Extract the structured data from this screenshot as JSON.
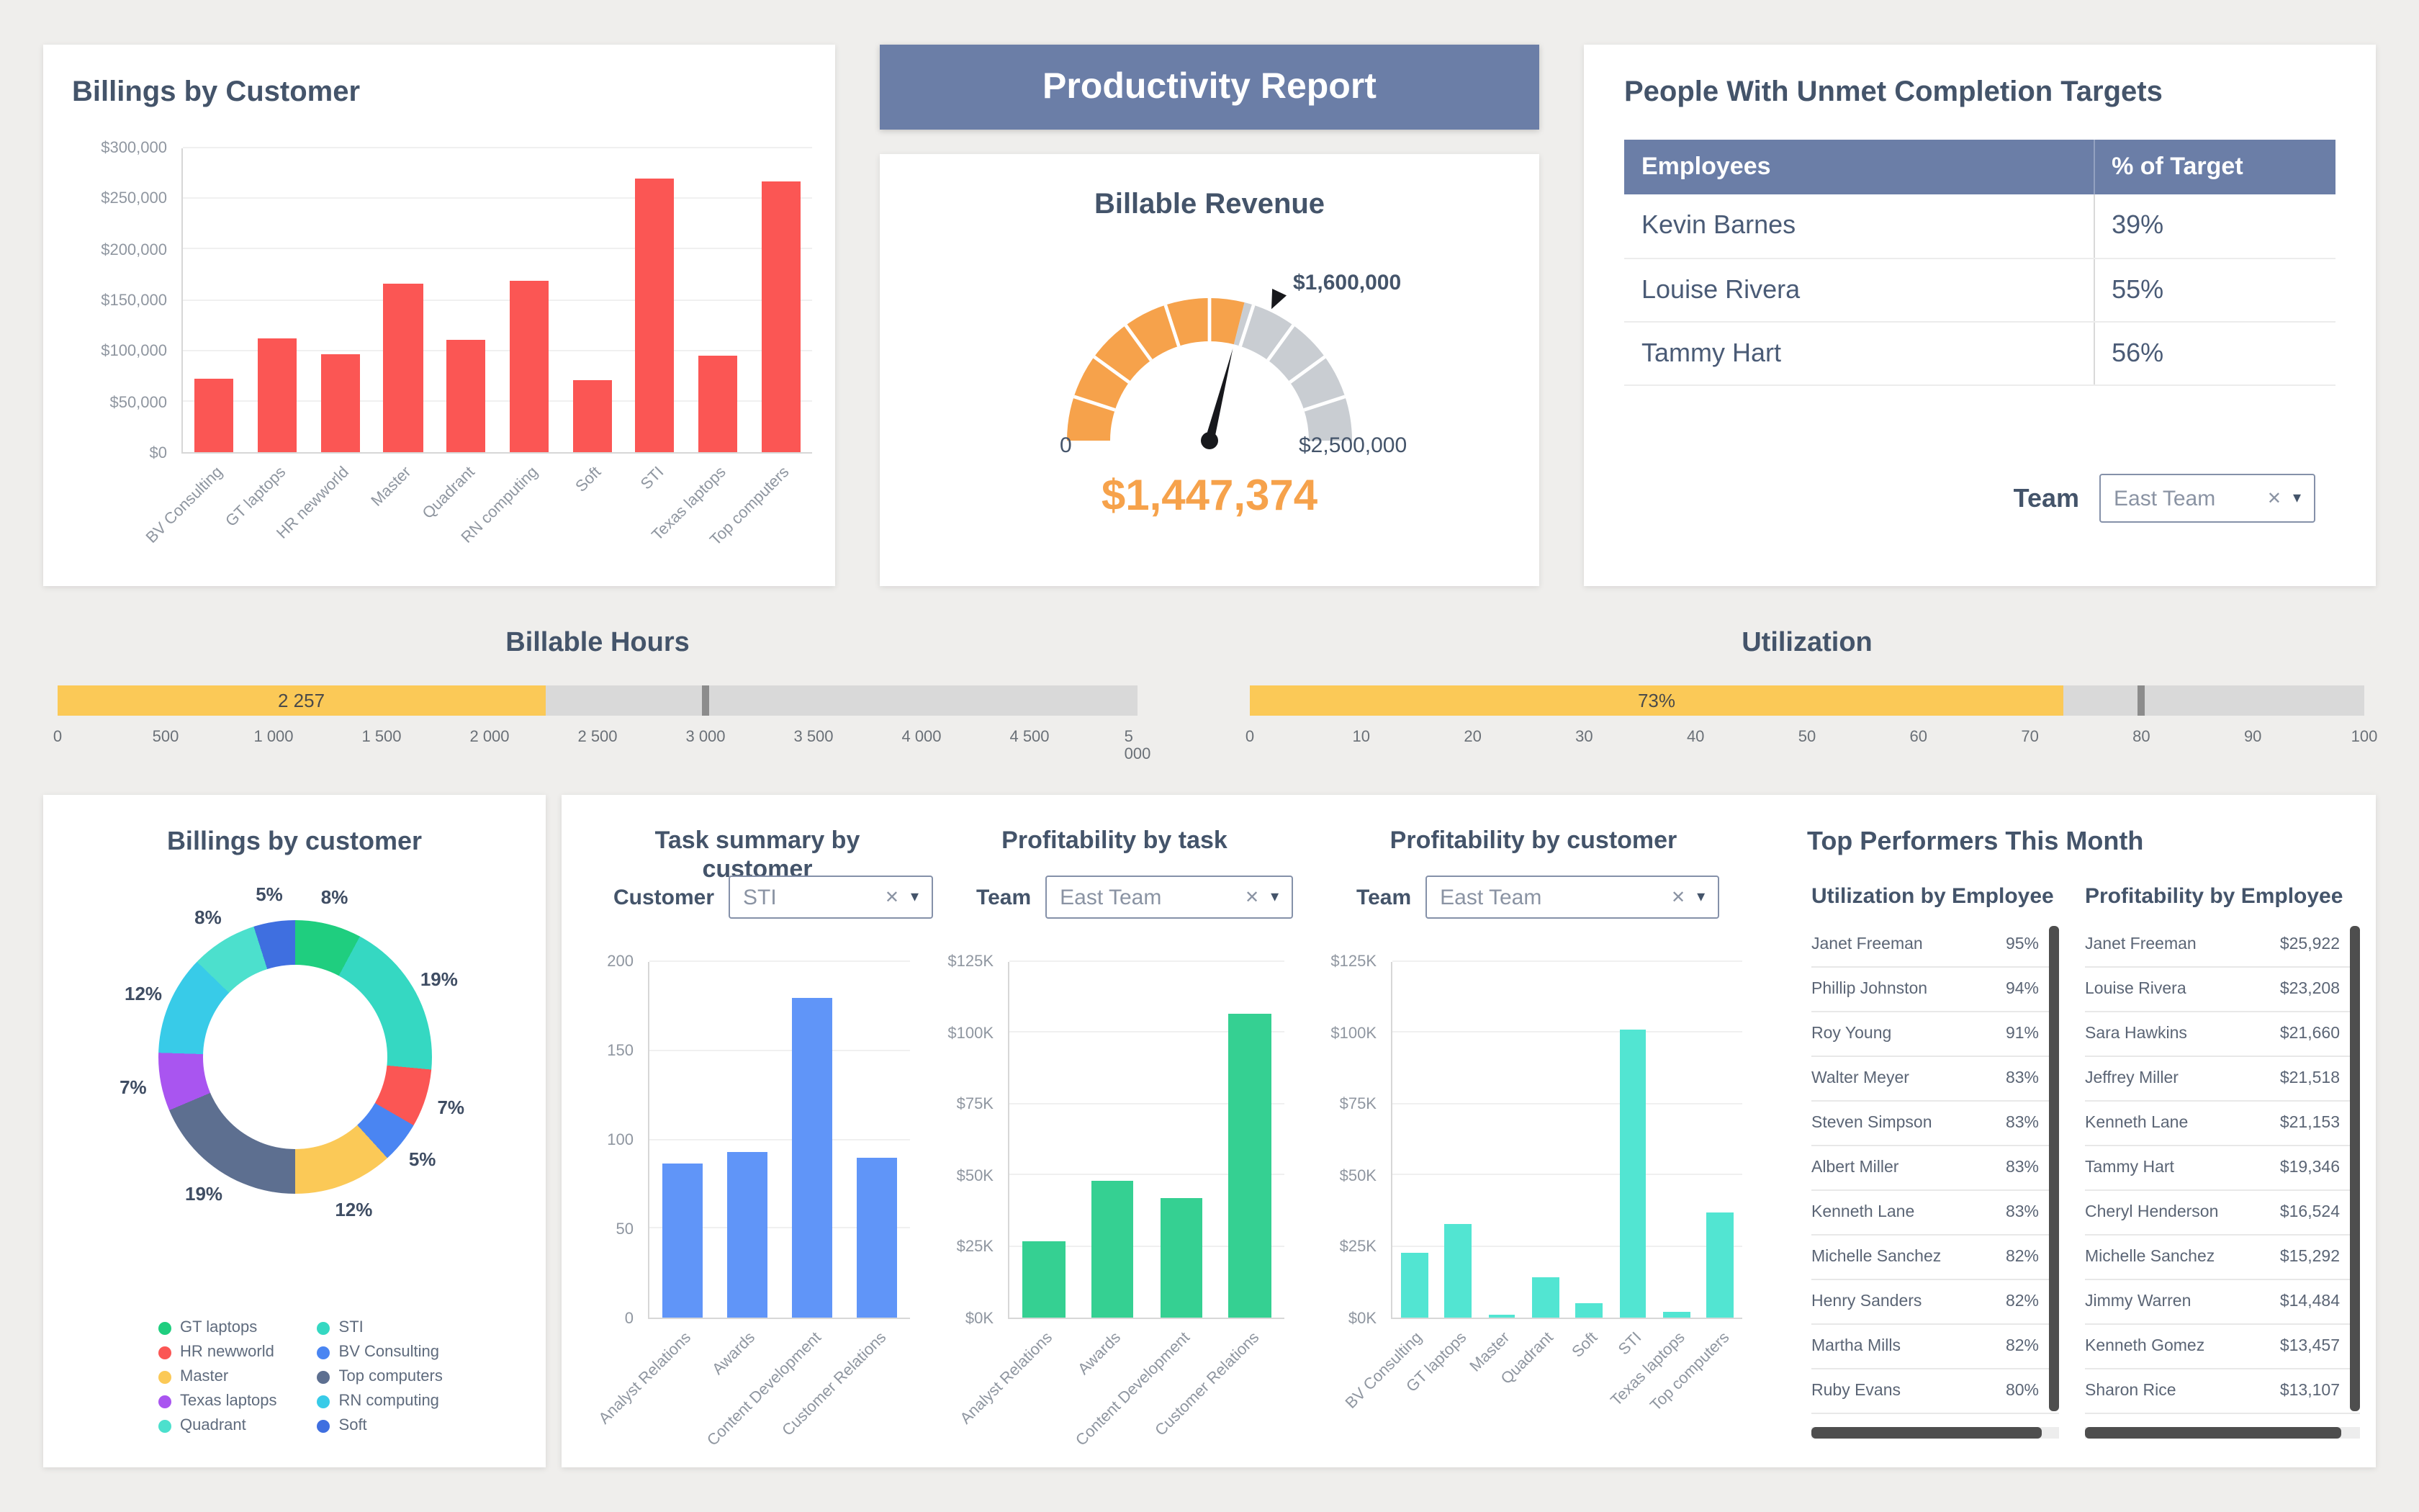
{
  "header": {
    "title": "Productivity Report"
  },
  "icons": {
    "clear": "✕",
    "caret": "▾"
  },
  "colors": {
    "banner_bg": "#6b7ea7",
    "accent_orange": "#f6a24b",
    "accent_yellow": "#fbc957",
    "bar_red": "#fb5654",
    "bar_blue": "#6095f8",
    "bar_green": "#35d092",
    "bar_cyan": "#52e5d2",
    "title_text": "#44546a"
  },
  "panels": {
    "billings_bar": {
      "title": "Billings by Customer"
    },
    "gauge": {
      "title": "Billable Revenue"
    },
    "targets_table": {
      "title": "People With Unmet Completion Targets",
      "columns": [
        "Employees",
        "% of Target"
      ],
      "rows": [
        {
          "employee": "Kevin Barnes",
          "pct": "39%"
        },
        {
          "employee": "Louise Rivera",
          "pct": "55%"
        },
        {
          "employee": "Tammy Hart",
          "pct": "56%"
        }
      ],
      "team_filter": {
        "label": "Team",
        "value": "East Team"
      }
    },
    "billable_hours": {
      "title": "Billable Hours"
    },
    "utilization": {
      "title": "Utilization"
    },
    "donut": {
      "title": "Billings by customer"
    },
    "task_summary": {
      "title": "Task summary by customer",
      "filter_label": "Customer",
      "filter_value": "STI"
    },
    "profit_task": {
      "title": "Profitability by task",
      "filter_label": "Team",
      "filter_value": "East Team"
    },
    "profit_customer": {
      "title": "Profitability by customer",
      "filter_label": "Team",
      "filter_value": "East Team"
    },
    "top_performers": {
      "title": "Top Performers This Month",
      "utilization_list": {
        "title": "Utilization by Employee",
        "rows": [
          {
            "name": "Janet Freeman",
            "value": "95%"
          },
          {
            "name": "Phillip Johnston",
            "value": "94%"
          },
          {
            "name": "Roy Young",
            "value": "91%"
          },
          {
            "name": "Walter Meyer",
            "value": "83%"
          },
          {
            "name": "Steven Simpson",
            "value": "83%"
          },
          {
            "name": "Albert Miller",
            "value": "83%"
          },
          {
            "name": "Kenneth Lane",
            "value": "83%"
          },
          {
            "name": "Michelle Sanchez",
            "value": "82%"
          },
          {
            "name": "Henry Sanders",
            "value": "82%"
          },
          {
            "name": "Martha Mills",
            "value": "82%"
          },
          {
            "name": "Ruby Evans",
            "value": "80%"
          }
        ]
      },
      "profitability_list": {
        "title": "Profitability by Employee",
        "rows": [
          {
            "name": "Janet Freeman",
            "value": "$25,922"
          },
          {
            "name": "Louise Rivera",
            "value": "$23,208"
          },
          {
            "name": "Sara Hawkins",
            "value": "$21,660"
          },
          {
            "name": "Jeffrey Miller",
            "value": "$21,518"
          },
          {
            "name": "Kenneth Lane",
            "value": "$21,153"
          },
          {
            "name": "Tammy Hart",
            "value": "$19,346"
          },
          {
            "name": "Cheryl Henderson",
            "value": "$16,524"
          },
          {
            "name": "Michelle Sanchez",
            "value": "$15,292"
          },
          {
            "name": "Jimmy Warren",
            "value": "$14,484"
          },
          {
            "name": "Kenneth Gomez",
            "value": "$13,457"
          },
          {
            "name": "Sharon Rice",
            "value": "$13,107"
          }
        ]
      }
    }
  },
  "chart_data": [
    {
      "id": "billings_by_customer",
      "type": "bar",
      "title": "Billings by Customer",
      "categories": [
        "BV Consulting",
        "GT laptops",
        "HR newworld",
        "Master",
        "Quadrant",
        "RN computing",
        "Soft",
        "STI",
        "Texas laptops",
        "Top computers"
      ],
      "values": [
        72000,
        113000,
        97000,
        166000,
        111000,
        169000,
        71000,
        270000,
        95000,
        267000
      ],
      "ylim": [
        0,
        300000
      ],
      "ytick_labels": [
        "$0",
        "$50,000",
        "$100,000",
        "$150,000",
        "$200,000",
        "$250,000",
        "$300,000"
      ],
      "bar_color": "#fb5654",
      "grid": true,
      "legend": "none"
    },
    {
      "id": "billable_revenue_gauge",
      "type": "gauge",
      "title": "Billable Revenue",
      "min": 0,
      "max": 2500000,
      "value": 1447374,
      "target": 1600000,
      "min_label": "0",
      "max_label": "$2,500,000",
      "target_label": "$1,600,000",
      "value_label": "$1,447,374",
      "fill_color": "#f6a24b",
      "track_color": "#c9cdd2"
    },
    {
      "id": "billable_hours_bullet",
      "type": "bullet",
      "title": "Billable Hours",
      "min": 0,
      "max": 5000,
      "value": 2257,
      "value_label": "2 257",
      "target": 3000,
      "ticks": [
        "0",
        "500",
        "1 000",
        "1 500",
        "2 000",
        "2 500",
        "3 000",
        "3 500",
        "4 000",
        "4 500",
        "5 000"
      ],
      "bar_color": "#fbc957"
    },
    {
      "id": "utilization_bullet",
      "type": "bullet",
      "title": "Utilization",
      "min": 0,
      "max": 100,
      "value": 73,
      "value_label": "73%",
      "target": 80,
      "ticks": [
        "0",
        "10",
        "20",
        "30",
        "40",
        "50",
        "60",
        "70",
        "80",
        "90",
        "100"
      ],
      "bar_color": "#fbc957"
    },
    {
      "id": "billings_donut",
      "type": "pie",
      "title": "Billings by customer",
      "slices": [
        {
          "label": "GT laptops",
          "pct": 8,
          "color": "#1fce7f"
        },
        {
          "label": "STI",
          "pct": 19,
          "color": "#35d8c2"
        },
        {
          "label": "HR newworld",
          "pct": 7,
          "color": "#fb5654"
        },
        {
          "label": "BV Consulting",
          "pct": 5,
          "color": "#4a85f2"
        },
        {
          "label": "Master",
          "pct": 12,
          "color": "#fbc957"
        },
        {
          "label": "Top computers",
          "pct": 19,
          "color": "#5d6f90"
        },
        {
          "label": "Texas laptops",
          "pct": 7,
          "color": "#a955f0"
        },
        {
          "label": "RN computing",
          "pct": 12,
          "color": "#38cbe8"
        },
        {
          "label": "Quadrant",
          "pct": 8,
          "color": "#4ce0cd"
        },
        {
          "label": "Soft",
          "pct": 5,
          "color": "#3f6fe0"
        }
      ],
      "legend_col1": [
        "GT laptops",
        "HR newworld",
        "Master",
        "Texas laptops",
        "Quadrant"
      ],
      "legend_col2": [
        "STI",
        "BV Consulting",
        "Top computers",
        "RN computing",
        "Soft"
      ],
      "legend_position": "bottom"
    },
    {
      "id": "task_summary",
      "type": "bar",
      "title": "Task summary by customer",
      "filter": {
        "label": "Customer",
        "value": "STI"
      },
      "categories": [
        "Analyst Relations",
        "Awards",
        "Content Development",
        "Customer Relations"
      ],
      "values": [
        87,
        93,
        180,
        90
      ],
      "ylim": [
        0,
        200
      ],
      "ytick_labels": [
        "0",
        "50",
        "100",
        "150",
        "200"
      ],
      "bar_color": "#6095f8",
      "grid": true
    },
    {
      "id": "profitability_by_task",
      "type": "bar",
      "title": "Profitability by task",
      "filter": {
        "label": "Team",
        "value": "East Team"
      },
      "categories": [
        "Analyst Relations",
        "Awards",
        "Content Development",
        "Customer Relations"
      ],
      "values": [
        27000,
        48000,
        42000,
        107000
      ],
      "ylim": [
        0,
        125000
      ],
      "ytick_labels": [
        "$0K",
        "$25K",
        "$50K",
        "$75K",
        "$100K",
        "$125K"
      ],
      "bar_color": "#35d092",
      "grid": true
    },
    {
      "id": "profitability_by_customer",
      "type": "bar",
      "title": "Profitability by customer",
      "filter": {
        "label": "Team",
        "value": "East Team"
      },
      "categories": [
        "BV Consulting",
        "GT laptops",
        "Master",
        "Quadrant",
        "Soft",
        "STI",
        "Texas laptops",
        "Top computers"
      ],
      "values": [
        23000,
        33000,
        1000,
        14000,
        5000,
        101000,
        2000,
        37000
      ],
      "ylim": [
        0,
        125000
      ],
      "ytick_labels": [
        "$0K",
        "$25K",
        "$50K",
        "$75K",
        "$100K",
        "$125K"
      ],
      "bar_color": "#52e5d2",
      "grid": true
    }
  ]
}
